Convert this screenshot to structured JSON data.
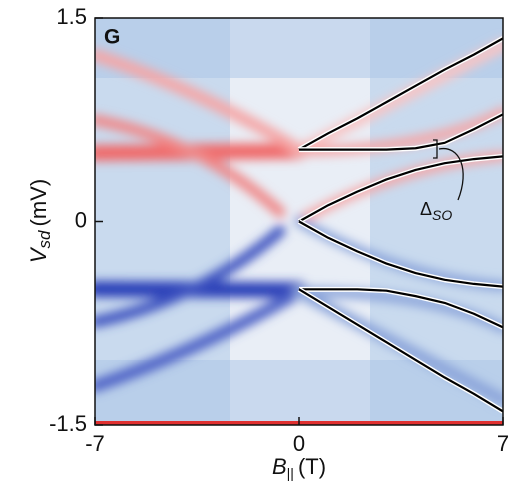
{
  "chart_data": {
    "type": "line",
    "panel_label": "G",
    "xlabel": {
      "symbol": "B",
      "subscript": "||",
      "unit": "(T)"
    },
    "ylabel": {
      "symbol": "V",
      "subscript": "sd",
      "unit": "(mV)"
    },
    "annotation": {
      "symbol": "Δ",
      "subscript": "SO"
    },
    "xlim": [
      -7,
      7
    ],
    "xticks": [
      -7,
      0,
      7
    ],
    "ylim": [
      -1.5,
      1.5
    ],
    "yticks": [
      1.5,
      0,
      -1.5
    ],
    "x": [
      0,
      1,
      2,
      3,
      4,
      5,
      6,
      7
    ],
    "series": [
      {
        "color": "#000000",
        "values": [
          0.53,
          0.65,
          0.76,
          0.88,
          1.0,
          1.12,
          1.23,
          1.35
        ]
      },
      {
        "color": "#000000",
        "values": [
          0.53,
          0.53,
          0.53,
          0.53,
          0.54,
          0.58,
          0.68,
          0.79
        ]
      },
      {
        "color": "#000000",
        "values": [
          0,
          0.12,
          0.22,
          0.31,
          0.38,
          0.43,
          0.46,
          0.48
        ]
      },
      {
        "color": "#000000",
        "values": [
          0,
          -0.12,
          -0.22,
          -0.31,
          -0.38,
          -0.43,
          -0.46,
          -0.48
        ]
      },
      {
        "color": "#000000",
        "values": [
          -0.5,
          -0.5,
          -0.5,
          -0.51,
          -0.55,
          -0.6,
          -0.68,
          -0.78
        ]
      },
      {
        "color": "#000000",
        "values": [
          -0.5,
          -0.63,
          -0.76,
          -0.89,
          -1.02,
          -1.15,
          -1.27,
          -1.4
        ]
      }
    ]
  }
}
